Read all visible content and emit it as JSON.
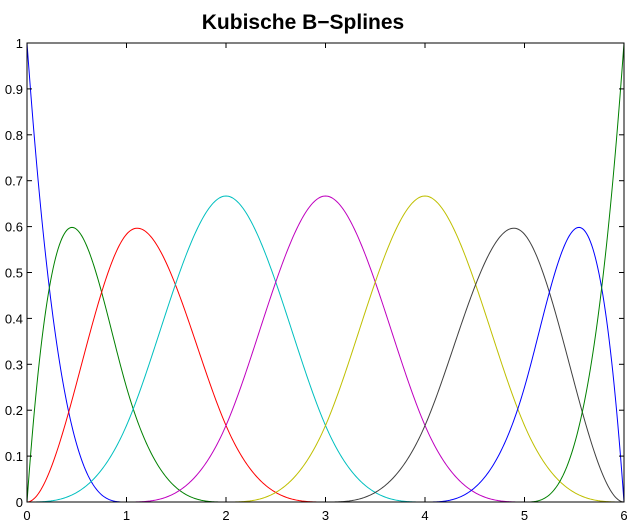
{
  "chart_data": {
    "type": "line",
    "title": "Kubische B−Splines",
    "xlabel": "",
    "ylabel": "",
    "xlim": [
      0,
      6
    ],
    "ylim": [
      0,
      1
    ],
    "grid": false,
    "legend": "none",
    "x_ticks": [
      "0",
      "1",
      "2",
      "3",
      "4",
      "5",
      "6"
    ],
    "y_ticks": [
      "0",
      "0.1",
      "0.2",
      "0.3",
      "0.4",
      "0.5",
      "0.6",
      "0.7",
      "0.8",
      "0.9",
      "1"
    ],
    "knots": [
      0,
      0,
      0,
      0,
      1,
      2,
      3,
      4,
      5,
      6,
      6,
      6,
      6
    ],
    "degree": 3,
    "x": [
      0,
      0.25,
      0.5,
      0.75,
      1,
      1.25,
      1.5,
      1.75,
      2,
      2.25,
      2.5,
      2.75,
      3,
      3.25,
      3.5,
      3.75,
      4,
      4.25,
      4.5,
      4.75,
      5,
      5.25,
      5.5,
      5.75,
      6
    ],
    "series": [
      {
        "color": "#0000ff",
        "values": [
          1,
          0.422,
          0.125,
          0.016,
          0,
          0,
          0,
          0,
          0,
          0,
          0,
          0,
          0,
          0,
          0,
          0,
          0,
          0,
          0,
          0,
          0,
          0,
          0,
          0,
          0
        ]
      },
      {
        "color": "#008000",
        "values": [
          0,
          0.496,
          0.594,
          0.398,
          0.25,
          0.105,
          0.031,
          0.004,
          0,
          0,
          0,
          0,
          0,
          0,
          0,
          0,
          0,
          0,
          0,
          0,
          0,
          0,
          0,
          0,
          0
        ]
      },
      {
        "color": "#ff0000",
        "values": [
          0,
          0.076,
          0.26,
          0.467,
          0.583,
          0.564,
          0.427,
          0.266,
          0.167,
          0.07,
          0.021,
          0.003,
          0,
          0,
          0,
          0,
          0,
          0,
          0,
          0,
          0,
          0,
          0,
          0,
          0
        ]
      },
      {
        "color": "#00bfbf",
        "values": [
          0,
          0.003,
          0.021,
          0.07,
          0.167,
          0.326,
          0.479,
          0.612,
          0.667,
          0.617,
          0.479,
          0.315,
          0.167,
          0.07,
          0.021,
          0.003,
          0,
          0,
          0,
          0,
          0,
          0,
          0,
          0,
          0
        ]
      },
      {
        "color": "#bf00bf",
        "values": [
          0,
          0,
          0,
          0,
          0,
          0.003,
          0.021,
          0.07,
          0.167,
          0.315,
          0.479,
          0.617,
          0.667,
          0.617,
          0.479,
          0.315,
          0.167,
          0.07,
          0.021,
          0.003,
          0,
          0,
          0,
          0,
          0
        ]
      },
      {
        "color": "#bfbf00",
        "values": [
          0,
          0,
          0,
          0,
          0,
          0,
          0,
          0,
          0,
          0.003,
          0.021,
          0.07,
          0.167,
          0.315,
          0.479,
          0.612,
          0.667,
          0.617,
          0.479,
          0.326,
          0.167,
          0.07,
          0.021,
          0.003,
          0
        ]
      },
      {
        "color": "#404040",
        "values": [
          0,
          0,
          0,
          0,
          0,
          0,
          0,
          0,
          0,
          0,
          0,
          0,
          0,
          0.003,
          0.021,
          0.07,
          0.167,
          0.266,
          0.427,
          0.564,
          0.583,
          0.467,
          0.26,
          0.076,
          0
        ]
      },
      {
        "color": "#0000ff",
        "values": [
          0,
          0,
          0,
          0,
          0,
          0,
          0,
          0,
          0,
          0,
          0,
          0,
          0,
          0,
          0,
          0,
          0,
          0.004,
          0.031,
          0.105,
          0.25,
          0.398,
          0.594,
          0.496,
          0
        ]
      },
      {
        "color": "#008000",
        "values": [
          0,
          0,
          0,
          0,
          0,
          0,
          0,
          0,
          0,
          0,
          0,
          0,
          0,
          0,
          0,
          0,
          0,
          0,
          0,
          0,
          0,
          0.016,
          0.125,
          0.422,
          1
        ]
      }
    ]
  }
}
